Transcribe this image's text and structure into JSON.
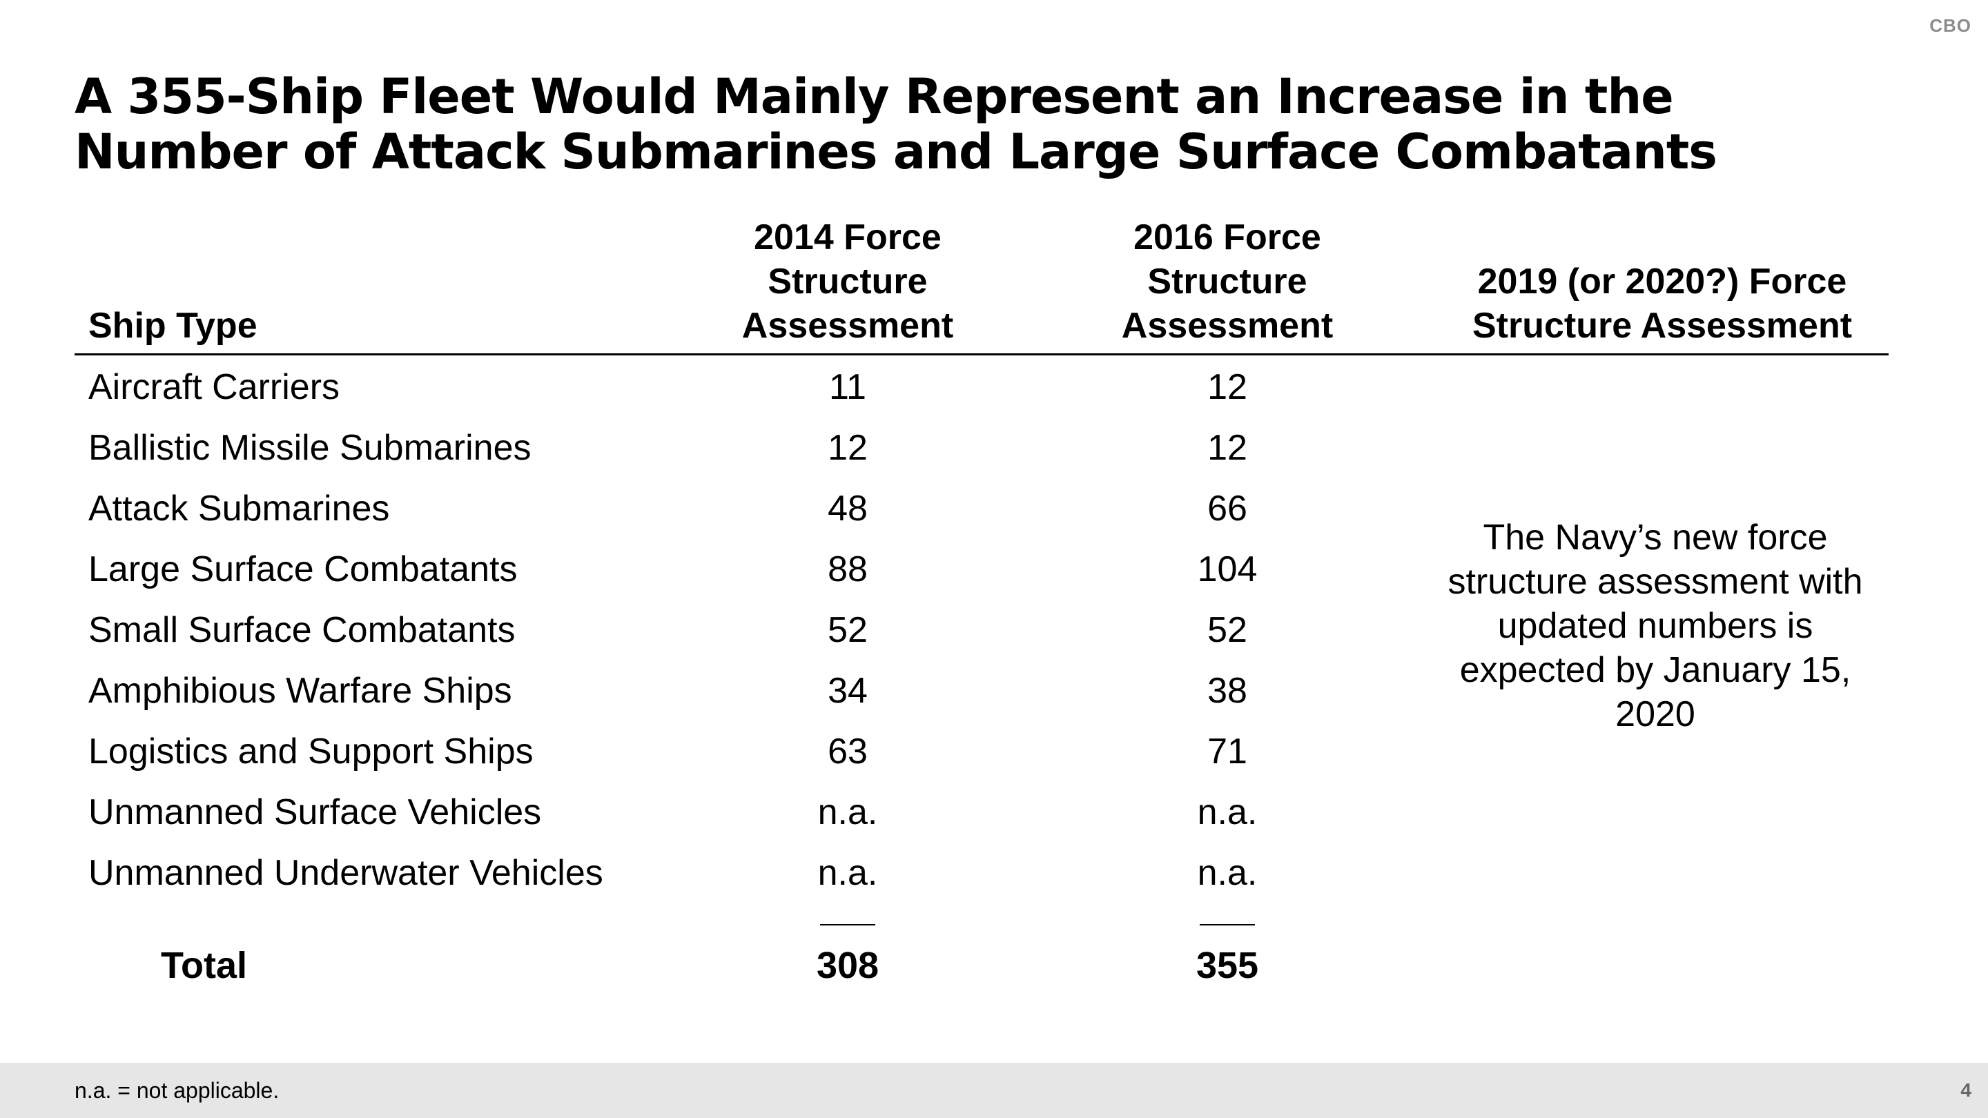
{
  "logo": "CBO",
  "title": "A 355-Ship Fleet Would Mainly Represent an Increase in the Number of Attack Submarines and Large Surface Combatants",
  "table": {
    "headers": {
      "ship_type": "Ship Type",
      "fsa_2014": "2014 Force Structure Assessment",
      "fsa_2016": "2016 Force Structure Assessment",
      "fsa_2019": "2019 (or 2020?) Force Structure Assessment"
    },
    "rows": [
      {
        "name": "Aircraft Carriers",
        "fsa_2014": "11",
        "fsa_2016": "12"
      },
      {
        "name": "Ballistic Missile Submarines",
        "fsa_2014": "12",
        "fsa_2016": "12"
      },
      {
        "name": "Attack Submarines",
        "fsa_2014": "48",
        "fsa_2016": "66"
      },
      {
        "name": "Large Surface Combatants",
        "fsa_2014": "88",
        "fsa_2016": "104"
      },
      {
        "name": "Small Surface Combatants",
        "fsa_2014": "52",
        "fsa_2016": "52"
      },
      {
        "name": "Amphibious Warfare Ships",
        "fsa_2014": "34",
        "fsa_2016": "38"
      },
      {
        "name": "Logistics and Support Ships",
        "fsa_2014": "63",
        "fsa_2016": "71"
      },
      {
        "name": "Unmanned Surface Vehicles",
        "fsa_2014": "n.a.",
        "fsa_2016": "n.a."
      },
      {
        "name": "Unmanned Underwater Vehicles",
        "fsa_2014": "n.a.",
        "fsa_2016": "n.a."
      }
    ],
    "total": {
      "label": "Total",
      "fsa_2014": "308",
      "fsa_2016": "355"
    },
    "note_2019": "The Navy’s new force structure assessment with updated numbers is expected by January 15, 2020"
  },
  "footer": {
    "footnote": "n.a. = not applicable.",
    "page_number": "4"
  }
}
